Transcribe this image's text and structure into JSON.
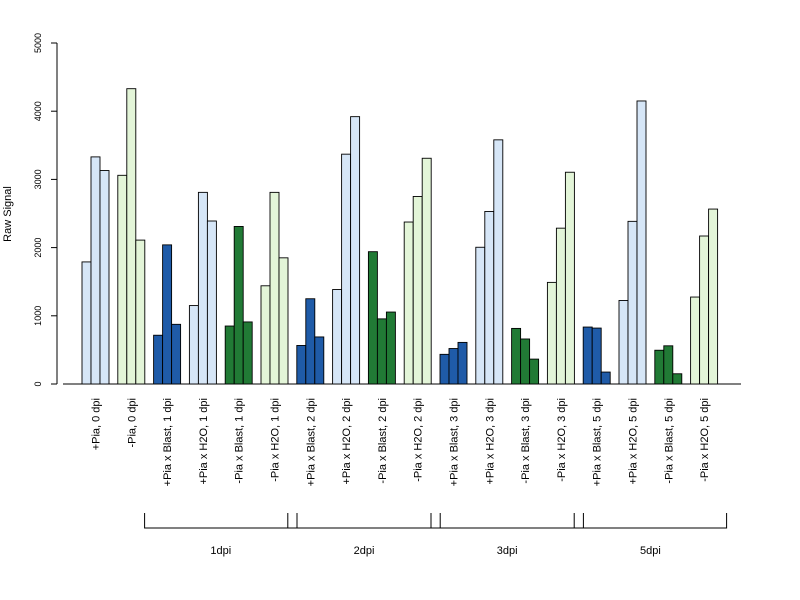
{
  "chart_data": {
    "type": "bar",
    "ylabel": "Raw Signal",
    "ylim": [
      0,
      5000
    ],
    "yticks": [
      "0",
      "1000",
      "2000",
      "3000",
      "4000",
      "5000"
    ],
    "colors": {
      "pia_h2o": "#d6e6f7",
      "nopia_h2o": "#e3f5d8",
      "pia_blast": "#1f5ba8",
      "nopia_blast": "#217a35"
    },
    "groups": [
      {
        "label": "+Pia, 0 dpi",
        "color": "pia_h2o",
        "values": [
          1790,
          3330,
          3130
        ]
      },
      {
        "label": "-Pia, 0 dpi",
        "color": "nopia_h2o",
        "values": [
          3060,
          4330,
          2110
        ]
      },
      {
        "label": "+Pia x Blast, 1 dpi",
        "color": "pia_blast",
        "values": [
          715,
          2040,
          875
        ]
      },
      {
        "label": "+Pia x H2O, 1 dpi",
        "color": "pia_h2o",
        "values": [
          1150,
          2810,
          2390
        ]
      },
      {
        "label": "-Pia x Blast, 1 dpi",
        "color": "nopia_blast",
        "values": [
          850,
          2310,
          910
        ]
      },
      {
        "label": "-Pia x H2O, 1 dpi",
        "color": "nopia_h2o",
        "values": [
          1440,
          2810,
          1850
        ]
      },
      {
        "label": "+Pia x Blast, 2 dpi",
        "color": "pia_blast",
        "values": [
          565,
          1250,
          690
        ]
      },
      {
        "label": "+Pia x H2O, 2 dpi",
        "color": "pia_h2o",
        "values": [
          1385,
          3370,
          3920
        ]
      },
      {
        "label": "-Pia x Blast, 2 dpi",
        "color": "nopia_blast",
        "values": [
          1940,
          955,
          1055
        ]
      },
      {
        "label": "-Pia x H2O, 2 dpi",
        "color": "nopia_h2o",
        "values": [
          2375,
          2750,
          3310
        ]
      },
      {
        "label": "+Pia x Blast, 3 dpi",
        "color": "pia_blast",
        "values": [
          435,
          520,
          610
        ]
      },
      {
        "label": "+Pia x H2O, 3 dpi",
        "color": "pia_h2o",
        "values": [
          2005,
          2530,
          3580
        ]
      },
      {
        "label": "-Pia x Blast, 3 dpi",
        "color": "nopia_blast",
        "values": [
          815,
          660,
          365
        ]
      },
      {
        "label": "-Pia x H2O, 3 dpi",
        "color": "nopia_h2o",
        "values": [
          1490,
          2285,
          3105
        ]
      },
      {
        "label": "+Pia x Blast, 5 dpi",
        "color": "pia_blast",
        "values": [
          835,
          820,
          175
        ]
      },
      {
        "label": "+Pia x H2O, 5 dpi",
        "color": "pia_h2o",
        "values": [
          1225,
          2385,
          4150
        ]
      },
      {
        "label": "-Pia x Blast, 5 dpi",
        "color": "nopia_blast",
        "values": [
          495,
          560,
          150
        ]
      },
      {
        "label": "-Pia x H2O, 5 dpi",
        "color": "nopia_h2o",
        "values": [
          1275,
          2170,
          2565
        ]
      }
    ],
    "brackets": [
      {
        "label": "1dpi",
        "from": 2,
        "to": 5
      },
      {
        "label": "2dpi",
        "from": 6,
        "to": 9
      },
      {
        "label": "3dpi",
        "from": 10,
        "to": 13
      },
      {
        "label": "5dpi",
        "from": 14,
        "to": 17
      }
    ]
  }
}
